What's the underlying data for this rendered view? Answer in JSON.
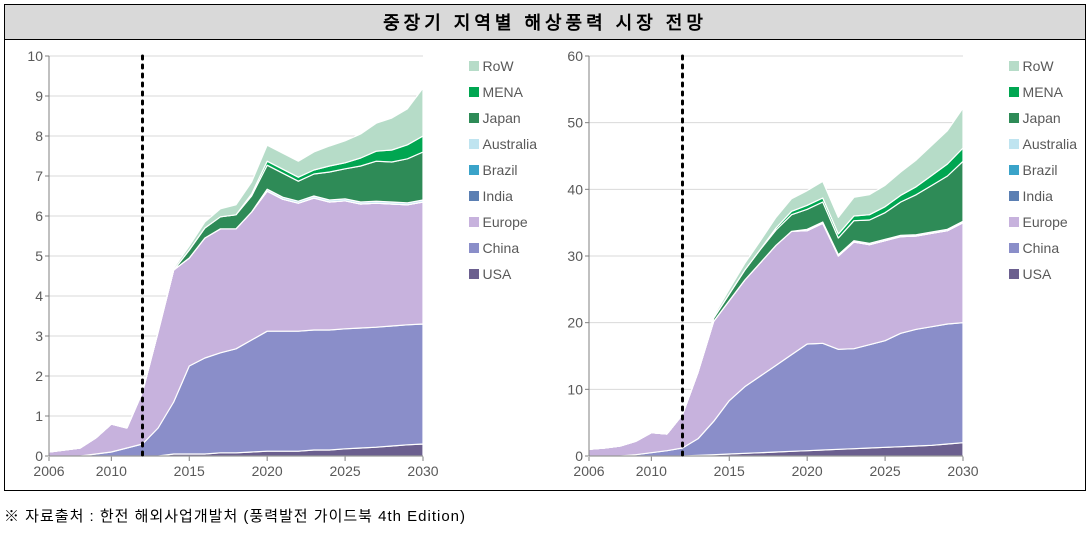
{
  "title": "중장기 지역별 해상풍력 시장 전망",
  "footnote": "※ 자료출처 : 한전 해외사업개발처 (풍력발전 가이드북 4th Edition)",
  "legend": [
    {
      "label": "RoW",
      "color": "#b6dcc8"
    },
    {
      "label": "MENA",
      "color": "#00a651"
    },
    {
      "label": "Japan",
      "color": "#2e8b57"
    },
    {
      "label": "Australia",
      "color": "#bfe4f0"
    },
    {
      "label": "Brazil",
      "color": "#3aa3c9"
    },
    {
      "label": "India",
      "color": "#5b7fb3"
    },
    {
      "label": "Europe",
      "color": "#c7b2dd"
    },
    {
      "label": "China",
      "color": "#8a8ec9"
    },
    {
      "label": "USA",
      "color": "#6b5f8f"
    }
  ],
  "left_chart": {
    "type": "area",
    "xlim": [
      2006,
      2030
    ],
    "ylim": [
      0,
      10
    ],
    "ytick_step": 1,
    "xticks": [
      2006,
      2010,
      2015,
      2020,
      2025,
      2030
    ],
    "grid_color": "#d9d9d9",
    "axis_color": "#808080",
    "tick_font_size": 14,
    "vline_x": 2012,
    "background_color": "#ffffff",
    "years": [
      2006,
      2007,
      2008,
      2009,
      2010,
      2011,
      2012,
      2013,
      2014,
      2015,
      2016,
      2017,
      2018,
      2019,
      2020,
      2021,
      2022,
      2023,
      2024,
      2025,
      2026,
      2027,
      2028,
      2029,
      2030
    ],
    "series": {
      "USA": [
        0,
        0,
        0,
        0,
        0,
        0,
        0,
        0,
        0.05,
        0.05,
        0.05,
        0.08,
        0.08,
        0.1,
        0.12,
        0.12,
        0.12,
        0.15,
        0.15,
        0.18,
        0.2,
        0.22,
        0.25,
        0.28,
        0.3
      ],
      "China": [
        0,
        0,
        0,
        0.05,
        0.1,
        0.2,
        0.3,
        0.7,
        1.3,
        2.2,
        2.4,
        2.5,
        2.6,
        2.8,
        3.0,
        3.0,
        3.0,
        3.0,
        3.0,
        3.0,
        3.0,
        3.0,
        3.0,
        3.0,
        3.0
      ],
      "Europe": [
        0.1,
        0.15,
        0.2,
        0.4,
        0.7,
        0.5,
        1.3,
        2.4,
        3.3,
        2.7,
        3.0,
        3.1,
        3.0,
        3.2,
        3.5,
        3.3,
        3.2,
        3.3,
        3.2,
        3.2,
        3.1,
        3.1,
        3.05,
        3.0,
        3.05
      ],
      "India": [
        0,
        0,
        0,
        0,
        0,
        0,
        0,
        0,
        0,
        0,
        0,
        0,
        0,
        0,
        0,
        0,
        0,
        0,
        0,
        0,
        0,
        0,
        0,
        0,
        0
      ],
      "Brazil": [
        0,
        0,
        0,
        0,
        0,
        0,
        0,
        0,
        0,
        0,
        0,
        0,
        0,
        0,
        0,
        0,
        0,
        0,
        0,
        0,
        0,
        0,
        0,
        0,
        0
      ],
      "Australia": [
        0,
        0,
        0,
        0,
        0,
        0,
        0,
        0,
        0,
        0,
        0,
        0,
        0,
        0,
        0.05,
        0.05,
        0.05,
        0.05,
        0.05,
        0.05,
        0.05,
        0.05,
        0.05,
        0.05,
        0.05
      ],
      "Japan": [
        0,
        0,
        0,
        0,
        0,
        0,
        0,
        0,
        0,
        0.2,
        0.25,
        0.3,
        0.35,
        0.4,
        0.6,
        0.6,
        0.5,
        0.55,
        0.7,
        0.75,
        0.9,
        1.0,
        1.0,
        1.1,
        1.2
      ],
      "MENA": [
        0,
        0,
        0,
        0,
        0,
        0,
        0,
        0,
        0,
        0,
        0,
        0,
        0,
        0.05,
        0.1,
        0.1,
        0.1,
        0.1,
        0.15,
        0.15,
        0.2,
        0.25,
        0.3,
        0.35,
        0.4
      ],
      "RoW": [
        0,
        0,
        0,
        0,
        0,
        0,
        0,
        0,
        0.05,
        0.1,
        0.15,
        0.2,
        0.25,
        0.3,
        0.4,
        0.4,
        0.4,
        0.45,
        0.5,
        0.55,
        0.6,
        0.7,
        0.8,
        0.9,
        1.2
      ]
    }
  },
  "right_chart": {
    "type": "area",
    "xlim": [
      2006,
      2030
    ],
    "ylim": [
      0,
      60
    ],
    "ytick_step": 10,
    "xticks": [
      2006,
      2010,
      2015,
      2020,
      2025,
      2030
    ],
    "grid_color": "#d9d9d9",
    "axis_color": "#808080",
    "tick_font_size": 14,
    "vline_x": 2012,
    "background_color": "#ffffff",
    "years": [
      2006,
      2007,
      2008,
      2009,
      2010,
      2011,
      2012,
      2013,
      2014,
      2015,
      2016,
      2017,
      2018,
      2019,
      2020,
      2021,
      2022,
      2023,
      2024,
      2025,
      2026,
      2027,
      2028,
      2029,
      2030
    ],
    "series": {
      "USA": [
        0,
        0,
        0,
        0,
        0,
        0,
        0,
        0.1,
        0.2,
        0.3,
        0.4,
        0.5,
        0.6,
        0.7,
        0.8,
        0.9,
        1.0,
        1.1,
        1.2,
        1.3,
        1.4,
        1.5,
        1.6,
        1.8,
        2.0
      ],
      "China": [
        0,
        0,
        0,
        0.2,
        0.5,
        0.8,
        1.2,
        2.5,
        5,
        8,
        10,
        11.5,
        13,
        14.5,
        16,
        16,
        15,
        15,
        15.5,
        16,
        17,
        17.5,
        17.8,
        18,
        18
      ],
      "Europe": [
        1,
        1.2,
        1.5,
        2,
        3,
        2.5,
        5,
        10,
        15,
        15,
        16,
        17,
        18,
        18.5,
        17,
        18,
        14,
        16,
        15,
        15,
        14.5,
        14,
        14,
        14,
        15
      ],
      "India": [
        0,
        0,
        0,
        0,
        0,
        0,
        0,
        0,
        0,
        0,
        0,
        0,
        0,
        0,
        0,
        0,
        0,
        0,
        0,
        0,
        0,
        0,
        0,
        0,
        0
      ],
      "Brazil": [
        0,
        0,
        0,
        0,
        0,
        0,
        0,
        0,
        0,
        0,
        0,
        0,
        0,
        0,
        0,
        0,
        0,
        0,
        0,
        0,
        0,
        0,
        0,
        0,
        0
      ],
      "Australia": [
        0,
        0,
        0,
        0,
        0,
        0,
        0,
        0,
        0,
        0,
        0,
        0,
        0,
        0,
        0.2,
        0.2,
        0.2,
        0.2,
        0.2,
        0.2,
        0.2,
        0.2,
        0.2,
        0.2,
        0.2
      ],
      "Japan": [
        0,
        0,
        0,
        0,
        0,
        0,
        0,
        0,
        0.5,
        1,
        1.5,
        2,
        2.3,
        2.5,
        3,
        3,
        2.5,
        3,
        3.5,
        4,
        5,
        6,
        7,
        8,
        9
      ],
      "MENA": [
        0,
        0,
        0,
        0,
        0,
        0,
        0,
        0,
        0,
        0,
        0,
        0,
        0.3,
        0.5,
        0.6,
        0.6,
        0.6,
        0.7,
        0.8,
        0.9,
        1.0,
        1.2,
        1.5,
        1.8,
        2.0
      ],
      "RoW": [
        0,
        0,
        0,
        0,
        0,
        0,
        0,
        0,
        0.3,
        0.7,
        1,
        1.3,
        1.6,
        1.9,
        2.2,
        2.5,
        2.5,
        2.8,
        3.0,
        3.2,
        3.5,
        4.0,
        4.5,
        5.0,
        6.0
      ]
    }
  },
  "stack_order_bottom_to_top": [
    "USA",
    "China",
    "Europe",
    "India",
    "Brazil",
    "Australia",
    "Japan",
    "MENA",
    "RoW"
  ],
  "series_colors": {
    "USA": "#6b5f8f",
    "China": "#8a8ec9",
    "Europe": "#c7b2dd",
    "India": "#5b7fb3",
    "Brazil": "#3aa3c9",
    "Australia": "#bfe4f0",
    "Japan": "#2e8b57",
    "MENA": "#00a651",
    "RoW": "#b6dcc8"
  },
  "series_stroke": "#ffffff",
  "series_stroke_width": 1.2
}
